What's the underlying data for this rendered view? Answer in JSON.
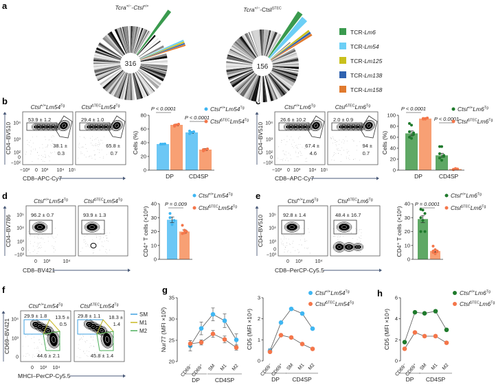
{
  "panel_labels": {
    "a": "a",
    "b": "b",
    "c": "c",
    "d": "d",
    "e": "e",
    "f": "f",
    "g": "g",
    "h": "h"
  },
  "genotypes": {
    "pie_wt": [
      [
        "Tcra",
        "i"
      ],
      [
        "+/−",
        "sup"
      ],
      [
        "-",
        ""
      ],
      [
        "Ctsl",
        "i"
      ],
      [
        "+/+",
        "sup"
      ]
    ],
    "pie_ko": [
      [
        "Tcra",
        "i"
      ],
      [
        "+/−",
        "sup"
      ],
      [
        "-",
        ""
      ],
      [
        "Ctsl",
        ""
      ],
      [
        "ΔTEC",
        "sup"
      ]
    ],
    "wt54": [
      [
        "Ctsl",
        "i"
      ],
      [
        "+/+",
        "sup"
      ],
      [
        "Lm54",
        "i"
      ],
      [
        "Tg",
        "sup"
      ]
    ],
    "ko54": [
      [
        "Ctsl",
        "i"
      ],
      [
        "ΔTEC",
        "sup"
      ],
      [
        "Lm54",
        "i"
      ],
      [
        "Tg",
        "sup"
      ]
    ],
    "wt6": [
      [
        "Ctsl",
        "i"
      ],
      [
        "+/+",
        "sup"
      ],
      [
        "Lm6",
        "i"
      ],
      [
        "Tg",
        "sup"
      ]
    ],
    "ko6": [
      [
        "Ctsl",
        "i"
      ],
      [
        "ΔTEC",
        "sup"
      ],
      [
        "Lm6",
        "i"
      ],
      [
        "Tg",
        "sup"
      ]
    ]
  },
  "colors": {
    "blue": "#3fb6f2",
    "blue_bar": "#6cc7f5",
    "orange": "#f4764a",
    "orange_bar": "#f8a074",
    "green": "#1f7a2c",
    "green_bar": "#5fa865",
    "lm6": "#3a9a4e",
    "lm54": "#6ccff6",
    "lm125": "#c9c01c",
    "lm138": "#2f62b0",
    "lm158": "#e07a2e",
    "sm": "#3fa0e0",
    "m1": "#c8b820",
    "m2": "#4caf5a"
  },
  "clone_legend": [
    {
      "prefix": "TCR-",
      "name": "Lm6",
      "color": "#3a9a4e"
    },
    {
      "prefix": "TCR-",
      "name": "Lm54",
      "color": "#6ccff6"
    },
    {
      "prefix": "TCR-",
      "name": "Lm125",
      "color": "#c9c01c"
    },
    {
      "prefix": "TCR-",
      "name": "Lm138",
      "color": "#2f62b0"
    },
    {
      "prefix": "TCR-",
      "name": "Lm158",
      "color": "#e07a2e"
    }
  ],
  "flow": {
    "b": {
      "ylabel": "CD4–BV510",
      "xlabel": "CD8–APC-Cy7",
      "yticks": [
        "10⁴",
        "10³",
        "10²",
        "0",
        "−10²"
      ],
      "xticks": [
        "−10³",
        "0",
        "10³",
        "10⁴",
        "10⁵"
      ],
      "plots": [
        {
          "genotype": "wt54",
          "gates": [
            "53.9 ± 1.2",
            "38.1 ±",
            "0.3"
          ]
        },
        {
          "genotype": "ko54",
          "gates": [
            "29.4 ± 1.0",
            "65.8 ±",
            "0.7"
          ]
        }
      ]
    },
    "c": {
      "ylabel": "CD4–BV510",
      "xlabel": "CD8–APC-Cy7",
      "yticks": [
        "10⁴",
        "10³",
        "10²",
        "0",
        "−10²"
      ],
      "xticks": [
        "−10³",
        "0",
        "10³",
        "10⁴",
        "10⁵"
      ],
      "plots": [
        {
          "genotype": "wt6",
          "gates": [
            "26.6 ± 10.2",
            "67.4 ±",
            "4.6"
          ]
        },
        {
          "genotype": "ko6",
          "gates": [
            "2.0 ± 0.9",
            "94 ±",
            "0.7"
          ]
        }
      ]
    },
    "d": {
      "ylabel": "CD4–BV786",
      "xlabel": "CD8–BV421",
      "yticks": [
        "10⁵",
        "10⁴",
        "10³",
        "0",
        "−10³"
      ],
      "xticks": [
        "0",
        "10³",
        "10⁴"
      ],
      "plots": [
        {
          "genotype": "wt54",
          "gates": [
            "96.2 ± 0.7"
          ]
        },
        {
          "genotype": "ko54",
          "gates": [
            "93.9 ± 1.3"
          ]
        }
      ]
    },
    "e": {
      "ylabel": "CD4–BV510",
      "xlabel": "CD8–PerCP-Cy5.5",
      "yticks": [
        "10⁵",
        "10⁴",
        "10³",
        "0",
        "−10³"
      ],
      "xticks": [
        "0",
        "10³",
        "10⁴"
      ],
      "plots": [
        {
          "genotype": "wt6",
          "gates": [
            "92.8 ± 1.4"
          ]
        },
        {
          "genotype": "ko6",
          "gates": [
            "48.4 ± 16.7"
          ]
        }
      ]
    },
    "f": {
      "ylabel": "CD69–BV421",
      "xlabel": "MHCI–PerCP-Cy5.5",
      "yticks": [
        "10⁴",
        "10³",
        "0"
      ],
      "xticks": [
        "0",
        "10³",
        "10⁴"
      ],
      "plots": [
        {
          "genotype": "wt54",
          "gates": [
            "29.9 ± 1.8",
            "13.5 ±",
            "0.5",
            "44.6 ± 2.1"
          ]
        },
        {
          "genotype": "ko54",
          "gates": [
            "29.8 ± 1.1",
            "18.3 ±",
            "1.4",
            "45.8 ± 1.4"
          ]
        }
      ],
      "legend": [
        {
          "label": "SM",
          "color": "#3fa0e0"
        },
        {
          "label": "M1",
          "color": "#c8b820"
        },
        {
          "label": "M2",
          "color": "#4caf5a"
        }
      ]
    }
  },
  "chart_data": [
    {
      "panel": "a",
      "type": "pie",
      "title_genotype": "pie_wt",
      "center_label": "316",
      "highlighted": [
        "TCR-Lm6",
        "TCR-Lm54",
        "TCR-Lm125",
        "TCR-Lm138",
        "TCR-Lm158"
      ]
    },
    {
      "panel": "a",
      "type": "pie",
      "title_genotype": "pie_ko",
      "center_label": "156",
      "highlighted": [
        "TCR-Lm6",
        "TCR-Lm54",
        "TCR-Lm125",
        "TCR-Lm138",
        "TCR-Lm158"
      ]
    },
    {
      "panel": "b",
      "type": "bar",
      "categories": [
        "DP",
        "CD4SP"
      ],
      "ylabel": "Cells (%)",
      "ylim": [
        0,
        80
      ],
      "yticks": [
        0,
        20,
        40,
        60,
        80
      ],
      "series": [
        {
          "genotype": "wt54",
          "color": "blue",
          "values": [
            38,
            55
          ],
          "sem": [
            0.5,
            1.5
          ],
          "points": [
            [
              37.8,
              38,
              38.2,
              38
            ],
            [
              53,
              55,
              56,
              57
            ]
          ]
        },
        {
          "genotype": "ko54",
          "color": "orange",
          "values": [
            66,
            30
          ],
          "sem": [
            1.2,
            1.5
          ],
          "points": [
            [
              64,
              66,
              67,
              65.5
            ],
            [
              28,
              29.5,
              31,
              30
            ]
          ]
        }
      ],
      "pvalues": [
        "P < 0.0001",
        "P < 0.0001"
      ]
    },
    {
      "panel": "c",
      "type": "bar",
      "categories": [
        "DP",
        "CD4SP"
      ],
      "ylabel": "Cells (%)",
      "ylim": [
        0,
        100
      ],
      "yticks": [
        0,
        20,
        40,
        60,
        80,
        100
      ],
      "series": [
        {
          "genotype": "wt6",
          "color": "green",
          "values": [
            67,
            27
          ],
          "sem": [
            4.5,
            3.5
          ],
          "points": [
            [
              85,
              82,
              65,
              60,
              58,
              68,
              70
            ],
            [
              43,
              43,
              27,
              22,
              18,
              25,
              30
            ]
          ]
        },
        {
          "genotype": "ko6",
          "color": "orange",
          "values": [
            94,
            2
          ],
          "sem": [
            0.7,
            0.5
          ],
          "points": [
            [
              93,
              94,
              95,
              94,
              93,
              95,
              94
            ],
            [
              1,
              2,
              2,
              1.5,
              3,
              2,
              1
            ]
          ]
        }
      ],
      "pvalues": [
        "P < 0.0001",
        "P < 0.0001"
      ]
    },
    {
      "panel": "d",
      "type": "bar",
      "categories": [
        ""
      ],
      "ylabel": "CD4⁺ T cells (×10⁶)",
      "ylim": [
        0,
        40
      ],
      "yticks": [
        0,
        10,
        20,
        30,
        40
      ],
      "series": [
        {
          "genotype": "wt54",
          "color": "blue",
          "values": [
            28.5
          ],
          "sem": [
            2
          ],
          "points": [
            [
              33,
              25,
              28,
              30
            ]
          ]
        },
        {
          "genotype": "ko54",
          "color": "orange",
          "values": [
            20
          ],
          "sem": [
            1.2
          ],
          "points": [
            [
              24.5,
              19,
              20,
              18.5,
              21
            ]
          ]
        }
      ],
      "pvalues": [
        "P = 0.009"
      ]
    },
    {
      "panel": "e",
      "type": "bar",
      "categories": [
        ""
      ],
      "ylabel": "CD4⁺ T cells (×10⁶)",
      "ylim": [
        0,
        40
      ],
      "yticks": [
        0,
        10,
        20,
        30,
        40
      ],
      "series": [
        {
          "genotype": "wt6",
          "color": "green",
          "values": [
            29
          ],
          "sem": [
            2.5
          ],
          "points": [
            [
              36,
              35.5,
              33,
              30,
              28,
              20,
              20
            ]
          ]
        },
        {
          "genotype": "ko6",
          "color": "orange",
          "values": [
            6
          ],
          "sem": [
            0.8
          ],
          "points": [
            [
              9.5,
              7,
              6,
              5,
              4,
              5.5,
              6
            ]
          ]
        }
      ],
      "pvalues": [
        "P = 0.0001"
      ]
    },
    {
      "panel": "g1",
      "type": "line",
      "categories": [
        "CD69⁻",
        "CD69⁺",
        "SM",
        "M1",
        "M2"
      ],
      "groups": [
        {
          "label": "DP",
          "span": [
            0,
            1
          ]
        },
        {
          "label": "CD4SP",
          "span": [
            2,
            4
          ]
        }
      ],
      "ylabel": "Nur77 (MFI ×10²)",
      "ylim": [
        20,
        35
      ],
      "yticks": [
        20,
        25,
        30,
        35
      ],
      "series": [
        {
          "genotype": "wt54",
          "color": "blue",
          "values": [
            23.7,
            27.8,
            31.1,
            29.6,
            25.1
          ],
          "sem": [
            1.2,
            1.5,
            1.5,
            1.6,
            1.4
          ]
        },
        {
          "genotype": "ko54",
          "color": "orange",
          "values": [
            24.2,
            24.5,
            26.5,
            25.2,
            23.3
          ],
          "sem": [
            0.7,
            0.6,
            0.8,
            0.8,
            0.6
          ]
        }
      ]
    },
    {
      "panel": "g2",
      "type": "line",
      "categories": [
        "CD69⁻",
        "CD69⁺",
        "SM",
        "M1",
        "M2"
      ],
      "groups": [
        {
          "label": "DP",
          "span": [
            0,
            1
          ]
        },
        {
          "label": "CD4SP",
          "span": [
            2,
            4
          ]
        }
      ],
      "ylabel": "CD5 (MFI ×10⁴)",
      "ylim": [
        0,
        3
      ],
      "yticks": [
        0,
        1,
        2,
        3
      ],
      "series": [
        {
          "genotype": "wt54",
          "color": "blue",
          "values": [
            0.48,
            1.82,
            2.47,
            2.25,
            1.53
          ],
          "sem": [
            0.1,
            0.04,
            0.04,
            0.04,
            0.04
          ]
        },
        {
          "genotype": "ko54",
          "color": "orange",
          "values": [
            0.43,
            1.22,
            1.11,
            0.8,
            0.57
          ],
          "sem": [
            0.04,
            0.03,
            0.03,
            0.03,
            0.03
          ]
        }
      ]
    },
    {
      "panel": "h",
      "type": "line",
      "categories": [
        "CD69⁻",
        "CD69⁺",
        "SM",
        "M1",
        "M2"
      ],
      "groups": [
        {
          "label": "DP",
          "span": [
            0,
            1
          ]
        },
        {
          "label": "CD4SP",
          "span": [
            2,
            4
          ]
        }
      ],
      "ylabel": "CD5 (MFI ×10⁴)",
      "ylim": [
        0,
        6
      ],
      "yticks": [
        0,
        2,
        4,
        6
      ],
      "series": [
        {
          "genotype": "wt6",
          "color": "green",
          "values": [
            1.78,
            4.62,
            4.52,
            4.72,
            2.95
          ],
          "sem": [
            0.05,
            0.05,
            0.05,
            0.05,
            0.05
          ]
        },
        {
          "genotype": "ko6",
          "color": "orange",
          "values": [
            1.15,
            2.7,
            2.35,
            2.35,
            1.72
          ],
          "sem": [
            0.05,
            0.05,
            0.05,
            0.05,
            0.05
          ]
        }
      ]
    }
  ]
}
